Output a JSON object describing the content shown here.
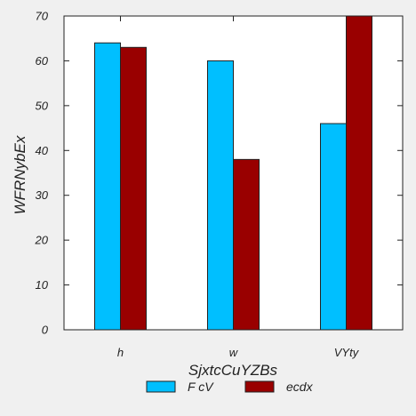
{
  "chart_data": {
    "type": "bar",
    "title": "",
    "xlabel": "SjxtcCuYZBs",
    "ylabel": "WFRNybEx",
    "categories": [
      "h",
      "w",
      "VYty"
    ],
    "series": [
      {
        "name": "F cV",
        "values": [
          64,
          60,
          46
        ],
        "color": "#00bfff"
      },
      {
        "name": "ecdx",
        "values": [
          63,
          38,
          70
        ],
        "color": "#990000"
      }
    ],
    "ylim": [
      0,
      70
    ],
    "yticks": [
      0,
      10,
      20,
      30,
      40,
      50,
      60,
      70
    ],
    "grid": false,
    "legend_position": "bottom-center",
    "background": "#f0f0f0",
    "plot_background": "#ffffff"
  }
}
